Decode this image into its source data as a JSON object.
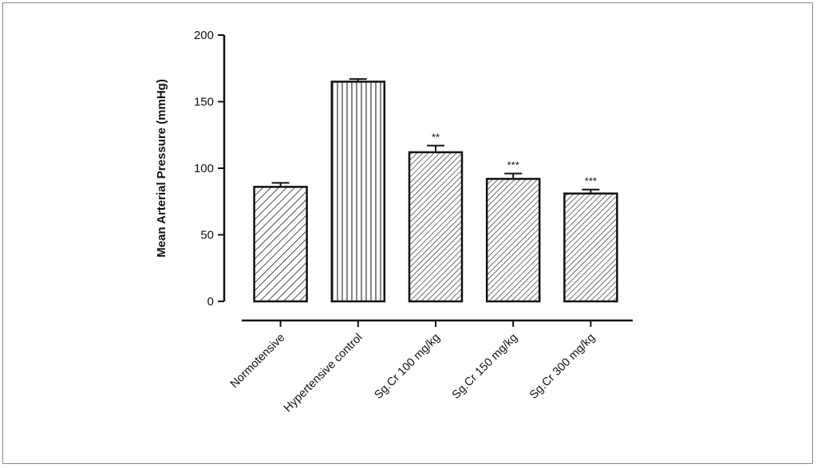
{
  "chart_data": {
    "type": "bar",
    "title": "",
    "xlabel": "",
    "ylabel": "Mean Arterial Pressure (mmHg)",
    "ylim": [
      0,
      200
    ],
    "yticks": [
      "0",
      "50",
      "100",
      "150",
      "200"
    ],
    "categories": [
      "Normotensive",
      "Hypertensive control",
      "Sg.Cr 100 mg/kg",
      "Sg.Cr 150 mg/kg",
      "Sg.Cr 300 mg/kg"
    ],
    "values": [
      86,
      165,
      112,
      92,
      81
    ],
    "errors": [
      3,
      2,
      5,
      4,
      3
    ],
    "significance": [
      "",
      "",
      "**",
      "***",
      "***"
    ],
    "patterns": [
      "diagonal",
      "vertical",
      "diagonal-dense",
      "diagonal-dense",
      "diagonal-dense"
    ],
    "grid": false,
    "legend": "none"
  }
}
